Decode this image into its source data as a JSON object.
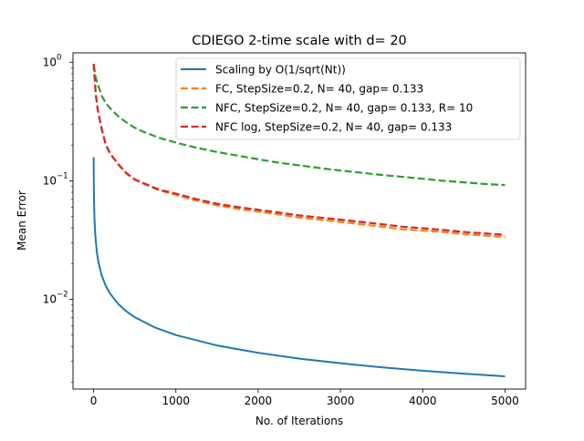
{
  "chart_data": {
    "type": "line",
    "title": "CDIEGO 2-time scale with d= 20",
    "xlabel": "No. of Iterations",
    "ylabel": "Mean Error",
    "yscale": "log",
    "xlim": [
      -250,
      5250
    ],
    "ylim": [
      0.00175,
      1.2
    ],
    "xticks": [
      0,
      1000,
      2000,
      3000,
      4000,
      5000
    ],
    "xtick_labels": [
      "0",
      "1000",
      "2000",
      "3000",
      "4000",
      "5000"
    ],
    "yticks": [
      0.01,
      0.1,
      1
    ],
    "ytick_labels": [
      "10",
      "10",
      "10"
    ],
    "ytick_exponents": [
      "−2",
      "−1",
      "0"
    ],
    "grid": false,
    "legend_position": "top-right",
    "series": [
      {
        "name": "Scaling by O(1/sqrt(Nt))",
        "color": "#1f77b4",
        "style": "solid",
        "x": [
          1,
          2,
          5,
          10,
          20,
          40,
          60,
          100,
          150,
          200,
          300,
          400,
          500,
          750,
          1000,
          1500,
          2000,
          2500,
          3000,
          3500,
          4000,
          4500,
          5000
        ],
        "y": [
          0.158,
          0.112,
          0.0707,
          0.05,
          0.0354,
          0.025,
          0.0204,
          0.0158,
          0.0129,
          0.0112,
          0.00913,
          0.0079,
          0.00707,
          0.00577,
          0.005,
          0.00408,
          0.00354,
          0.00316,
          0.00289,
          0.00267,
          0.0025,
          0.00236,
          0.00224
        ]
      },
      {
        "name": "FC, StepSize=0.2, N= 40, gap= 0.133",
        "color": "#ff7f0e",
        "style": "dashed",
        "x": [
          1,
          25,
          50,
          100,
          150,
          200,
          300,
          400,
          500,
          600,
          800,
          1000,
          1250,
          1500,
          1750,
          2000,
          2250,
          2500,
          2750,
          3000,
          3250,
          3500,
          3750,
          4000,
          4250,
          4500,
          4750,
          5000
        ],
        "y": [
          0.97,
          0.55,
          0.4,
          0.27,
          0.2,
          0.17,
          0.137,
          0.115,
          0.102,
          0.095,
          0.083,
          0.076,
          0.068,
          0.062,
          0.058,
          0.055,
          0.052,
          0.049,
          0.047,
          0.045,
          0.043,
          0.041,
          0.039,
          0.038,
          0.037,
          0.0355,
          0.0345,
          0.0335
        ]
      },
      {
        "name": "NFC, StepSize=0.2, N= 40, gap= 0.133, R= 10",
        "color": "#2ca02c",
        "style": "dashed",
        "x": [
          1,
          25,
          50,
          100,
          150,
          200,
          300,
          400,
          500,
          600,
          800,
          1000,
          1250,
          1500,
          1750,
          2000,
          2250,
          2500,
          2750,
          3000,
          3250,
          3500,
          3750,
          4000,
          4250,
          4500,
          4750,
          5000
        ],
        "y": [
          0.95,
          0.75,
          0.65,
          0.52,
          0.45,
          0.41,
          0.35,
          0.31,
          0.28,
          0.26,
          0.23,
          0.21,
          0.19,
          0.175,
          0.163,
          0.152,
          0.142,
          0.135,
          0.128,
          0.122,
          0.117,
          0.112,
          0.108,
          0.104,
          0.1,
          0.097,
          0.094,
          0.092
        ]
      },
      {
        "name": "NFC log, StepSize=0.2, N= 40, gap= 0.133",
        "color": "#d62728",
        "style": "dashed",
        "x": [
          1,
          25,
          50,
          100,
          150,
          200,
          300,
          400,
          500,
          600,
          800,
          1000,
          1250,
          1500,
          1750,
          2000,
          2250,
          2500,
          2750,
          3000,
          3250,
          3500,
          3750,
          4000,
          4250,
          4500,
          4750,
          5000
        ],
        "y": [
          0.97,
          0.55,
          0.4,
          0.27,
          0.2,
          0.17,
          0.138,
          0.116,
          0.103,
          0.096,
          0.084,
          0.078,
          0.07,
          0.064,
          0.06,
          0.057,
          0.054,
          0.051,
          0.049,
          0.047,
          0.045,
          0.043,
          0.041,
          0.0398,
          0.0385,
          0.037,
          0.036,
          0.035
        ]
      }
    ]
  }
}
